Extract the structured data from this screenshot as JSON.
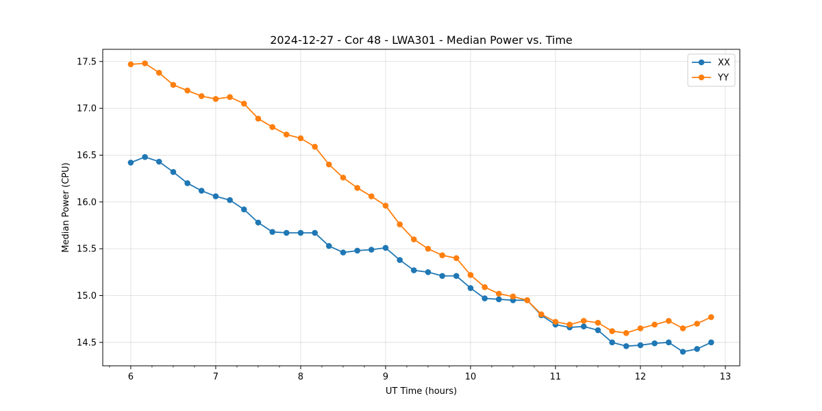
{
  "chart_data": {
    "type": "line",
    "title": "2024-12-27 - Cor 48 - LWA301 - Median Power vs. Time",
    "xlabel": "UT Time (hours)",
    "ylabel": "Median Power (CPU)",
    "xlim": [
      5.67,
      13.17
    ],
    "ylim": [
      14.25,
      17.63
    ],
    "xticks": [
      6,
      7,
      8,
      9,
      10,
      11,
      12,
      13
    ],
    "xtick_labels": [
      "6",
      "7",
      "8",
      "9",
      "10",
      "11",
      "12",
      "13"
    ],
    "yticks": [
      14.5,
      15.0,
      15.5,
      16.0,
      16.5,
      17.0,
      17.5
    ],
    "ytick_labels": [
      "14.5",
      "15.0",
      "15.5",
      "16.0",
      "16.5",
      "17.0",
      "17.5"
    ],
    "grid": true,
    "legend_position": "top-right",
    "x": [
      6.0,
      6.167,
      6.333,
      6.5,
      6.667,
      6.833,
      7.0,
      7.167,
      7.333,
      7.5,
      7.667,
      7.833,
      8.0,
      8.167,
      8.333,
      8.5,
      8.667,
      8.833,
      9.0,
      9.167,
      9.333,
      9.5,
      9.667,
      9.833,
      10.0,
      10.167,
      10.333,
      10.5,
      10.667,
      10.833,
      11.0,
      11.167,
      11.333,
      11.5,
      11.667,
      11.833,
      12.0,
      12.167,
      12.333,
      12.5,
      12.667,
      12.833
    ],
    "series": [
      {
        "name": "XX",
        "color": "#1f77b4",
        "values": [
          16.42,
          16.48,
          16.43,
          16.32,
          16.2,
          16.12,
          16.06,
          16.02,
          15.92,
          15.78,
          15.68,
          15.67,
          15.67,
          15.67,
          15.53,
          15.46,
          15.48,
          15.49,
          15.51,
          15.38,
          15.27,
          15.25,
          15.21,
          15.21,
          15.08,
          14.97,
          14.96,
          14.95,
          14.95,
          14.79,
          14.69,
          14.66,
          14.67,
          14.63,
          14.5,
          14.46,
          14.47,
          14.49,
          14.5,
          14.4,
          14.43,
          14.5
        ]
      },
      {
        "name": "YY",
        "color": "#ff7f0e",
        "values": [
          17.47,
          17.48,
          17.38,
          17.25,
          17.19,
          17.13,
          17.1,
          17.12,
          17.05,
          16.89,
          16.8,
          16.72,
          16.68,
          16.59,
          16.4,
          16.26,
          16.15,
          16.06,
          15.96,
          15.76,
          15.6,
          15.5,
          15.43,
          15.4,
          15.22,
          15.09,
          15.02,
          14.99,
          14.95,
          14.8,
          14.72,
          14.69,
          14.73,
          14.71,
          14.62,
          14.6,
          14.65,
          14.69,
          14.73,
          14.65,
          14.7,
          14.77
        ]
      }
    ]
  }
}
